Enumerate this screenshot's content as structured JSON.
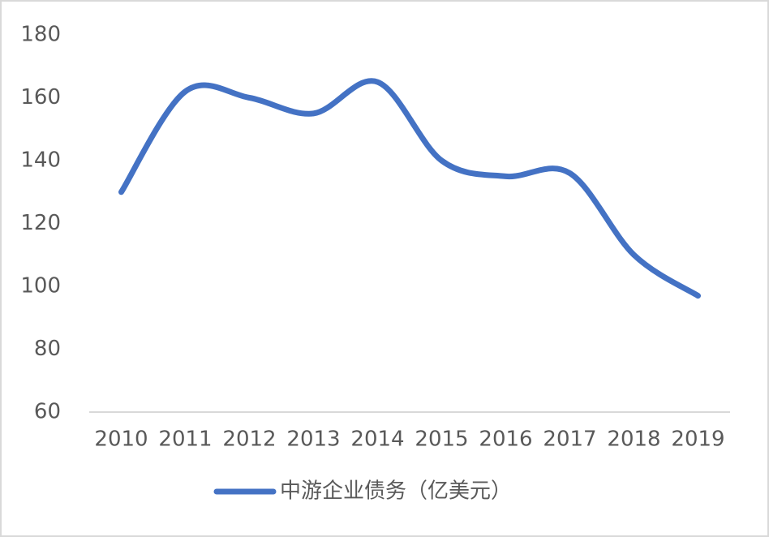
{
  "chart_data": {
    "type": "line",
    "categories": [
      "2010",
      "2011",
      "2012",
      "2013",
      "2014",
      "2015",
      "2016",
      "2017",
      "2018",
      "2019"
    ],
    "series": [
      {
        "name": "中游企业债务（亿美元）",
        "color": "#4472c4",
        "values": [
          130,
          162,
          160,
          155,
          165,
          140,
          135,
          136,
          110,
          97
        ]
      }
    ],
    "ylim": [
      60,
      180
    ],
    "yticks": [
      60,
      80,
      100,
      120,
      140,
      160,
      180
    ],
    "grid": false,
    "smooth": true,
    "legend": "bottom"
  }
}
